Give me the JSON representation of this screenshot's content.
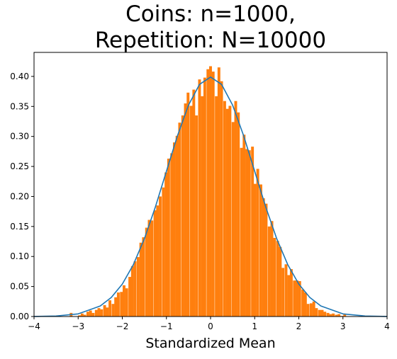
{
  "chart_data": {
    "type": "bar",
    "title_lines": [
      "Coins: n=1000,",
      "Repetition: N=10000"
    ],
    "xlabel": "Standardized Mean",
    "ylabel": "",
    "xlim": [
      -4,
      4
    ],
    "ylim": [
      0,
      0.44
    ],
    "x_ticks": [
      -4,
      -3,
      -2,
      -1,
      0,
      1,
      2,
      3,
      4
    ],
    "x_tick_labels": [
      "−4",
      "−3",
      "−2",
      "−1",
      "0",
      "1",
      "2",
      "3",
      "4"
    ],
    "y_ticks": [
      0.0,
      0.05,
      0.1,
      0.15,
      0.2,
      0.25,
      0.3,
      0.35,
      0.4
    ],
    "y_tick_labels": [
      "0.00",
      "0.05",
      "0.10",
      "0.15",
      "0.20",
      "0.25",
      "0.30",
      "0.35",
      "0.40"
    ],
    "grid": false,
    "legend": "none",
    "series": [
      {
        "kind": "histogram",
        "color": "#ff7f0e",
        "bar_width": 0.0632,
        "x": [
          -3.16,
          -2.97,
          -2.91,
          -2.85,
          -2.78,
          -2.72,
          -2.66,
          -2.59,
          -2.53,
          -2.47,
          -2.4,
          -2.34,
          -2.28,
          -2.21,
          -2.15,
          -2.09,
          -2.02,
          -1.96,
          -1.9,
          -1.83,
          -1.77,
          -1.71,
          -1.64,
          -1.58,
          -1.52,
          -1.45,
          -1.39,
          -1.33,
          -1.26,
          -1.2,
          -1.14,
          -1.07,
          -1.01,
          -0.95,
          -0.88,
          -0.82,
          -0.76,
          -0.7,
          -0.63,
          -0.57,
          -0.51,
          -0.44,
          -0.38,
          -0.32,
          -0.25,
          -0.19,
          -0.13,
          -0.06,
          0.0,
          0.06,
          0.13,
          0.19,
          0.25,
          0.32,
          0.38,
          0.44,
          0.51,
          0.57,
          0.63,
          0.7,
          0.76,
          0.82,
          0.88,
          0.95,
          1.01,
          1.07,
          1.14,
          1.2,
          1.26,
          1.33,
          1.39,
          1.45,
          1.52,
          1.58,
          1.64,
          1.71,
          1.77,
          1.83,
          1.9,
          1.96,
          2.02,
          2.09,
          2.15,
          2.21,
          2.28,
          2.34,
          2.4,
          2.47,
          2.53,
          2.59,
          2.66,
          2.72,
          2.78,
          2.85,
          2.91,
          2.97,
          3.04
        ],
        "values": [
          0.006,
          0.002,
          0.005,
          0.003,
          0.008,
          0.01,
          0.006,
          0.011,
          0.014,
          0.012,
          0.019,
          0.015,
          0.027,
          0.021,
          0.032,
          0.04,
          0.041,
          0.052,
          0.047,
          0.066,
          0.084,
          0.092,
          0.099,
          0.123,
          0.132,
          0.148,
          0.161,
          0.16,
          0.177,
          0.185,
          0.2,
          0.215,
          0.24,
          0.263,
          0.272,
          0.29,
          0.301,
          0.323,
          0.335,
          0.355,
          0.373,
          0.351,
          0.378,
          0.335,
          0.395,
          0.367,
          0.398,
          0.412,
          0.417,
          0.408,
          0.367,
          0.415,
          0.392,
          0.359,
          0.346,
          0.351,
          0.324,
          0.359,
          0.34,
          0.281,
          0.303,
          0.279,
          0.277,
          0.283,
          0.221,
          0.246,
          0.22,
          0.197,
          0.188,
          0.15,
          0.159,
          0.131,
          0.126,
          0.116,
          0.081,
          0.087,
          0.069,
          0.079,
          0.06,
          0.06,
          0.059,
          0.045,
          0.04,
          0.021,
          0.022,
          0.025,
          0.014,
          0.011,
          0.011,
          0.008,
          0.006,
          0.004,
          0.005,
          0.003,
          0.004,
          0.001,
          0.004
        ]
      },
      {
        "kind": "line",
        "color": "#1f77b4",
        "function": "standard normal pdf",
        "x": [
          -4.0,
          -3.5,
          -3.0,
          -2.5,
          -2.25,
          -2.0,
          -1.75,
          -1.5,
          -1.25,
          -1.0,
          -0.75,
          -0.5,
          -0.25,
          0.0,
          0.25,
          0.5,
          0.75,
          1.0,
          1.25,
          1.5,
          1.75,
          2.0,
          2.25,
          2.5,
          3.0,
          3.5,
          4.0
        ],
        "values": [
          0.0001,
          0.0009,
          0.0044,
          0.0175,
          0.0317,
          0.054,
          0.0863,
          0.1295,
          0.1826,
          0.242,
          0.3011,
          0.3521,
          0.3867,
          0.3989,
          0.3867,
          0.3521,
          0.3011,
          0.242,
          0.1826,
          0.1295,
          0.0863,
          0.054,
          0.0317,
          0.0175,
          0.0044,
          0.0009,
          0.0001
        ]
      }
    ]
  }
}
